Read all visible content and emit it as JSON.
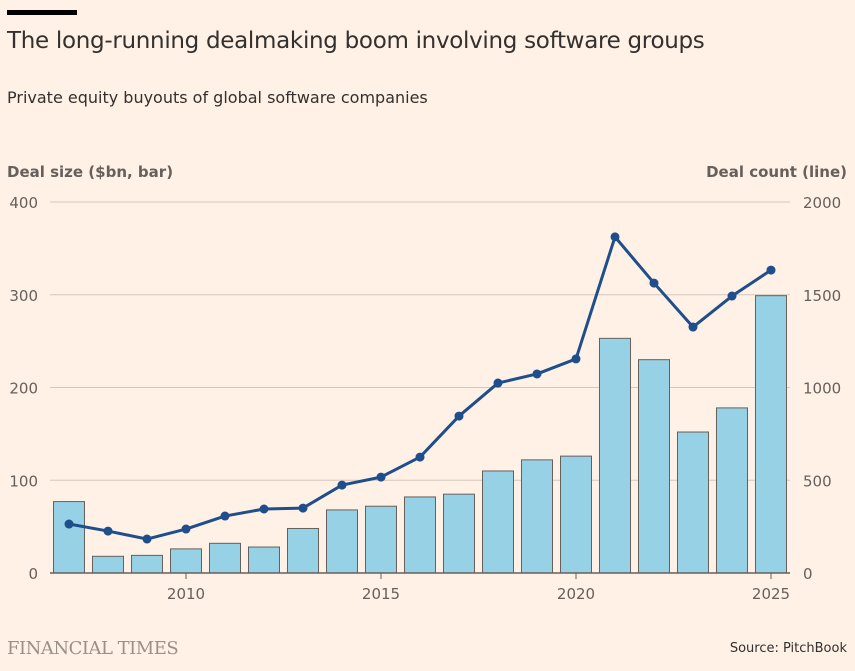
{
  "title": "The long-running dealmaking boom involving software groups",
  "subtitle": "Private equity buyouts of global software companies",
  "source": "Source: PitchBook",
  "logo": "FINANCIAL TIMES",
  "colors": {
    "bar": "#96d1e5",
    "line": "#1f4e8c",
    "grid": "#d6c6bc"
  },
  "chart_data": {
    "type": "bar+line",
    "title": "The long-running dealmaking boom involving software groups",
    "ylabel": "Deal size ($bn, bar)",
    "ylabel_right": "Deal count (line)",
    "ylim": [
      0,
      400
    ],
    "ylim_right": [
      0,
      2000
    ],
    "yticks": [
      "0",
      "100",
      "200",
      "300",
      "400"
    ],
    "yticks_right": [
      "0",
      "500",
      "1000",
      "1500",
      "2000"
    ],
    "xticks": [
      "2010",
      "2015",
      "2020",
      "2025"
    ],
    "x": [
      2007,
      2008,
      2009,
      2010,
      2011,
      2012,
      2013,
      2014,
      2015,
      2016,
      2017,
      2018,
      2019,
      2020,
      2021,
      2022,
      2023,
      2024,
      2025
    ],
    "series": [
      {
        "name": "Deal size ($bn)",
        "kind": "bar",
        "values": [
          77,
          18,
          19,
          26,
          32,
          28,
          48,
          68,
          72,
          82,
          85,
          110,
          122,
          126,
          253,
          230,
          152,
          178,
          299
        ]
      },
      {
        "name": "Deal count",
        "kind": "line",
        "values": [
          264,
          226,
          183,
          237,
          307,
          345,
          350,
          474,
          517,
          625,
          846,
          1024,
          1073,
          1154,
          1812,
          1563,
          1326,
          1493,
          1633
        ]
      }
    ],
    "grid": true
  }
}
